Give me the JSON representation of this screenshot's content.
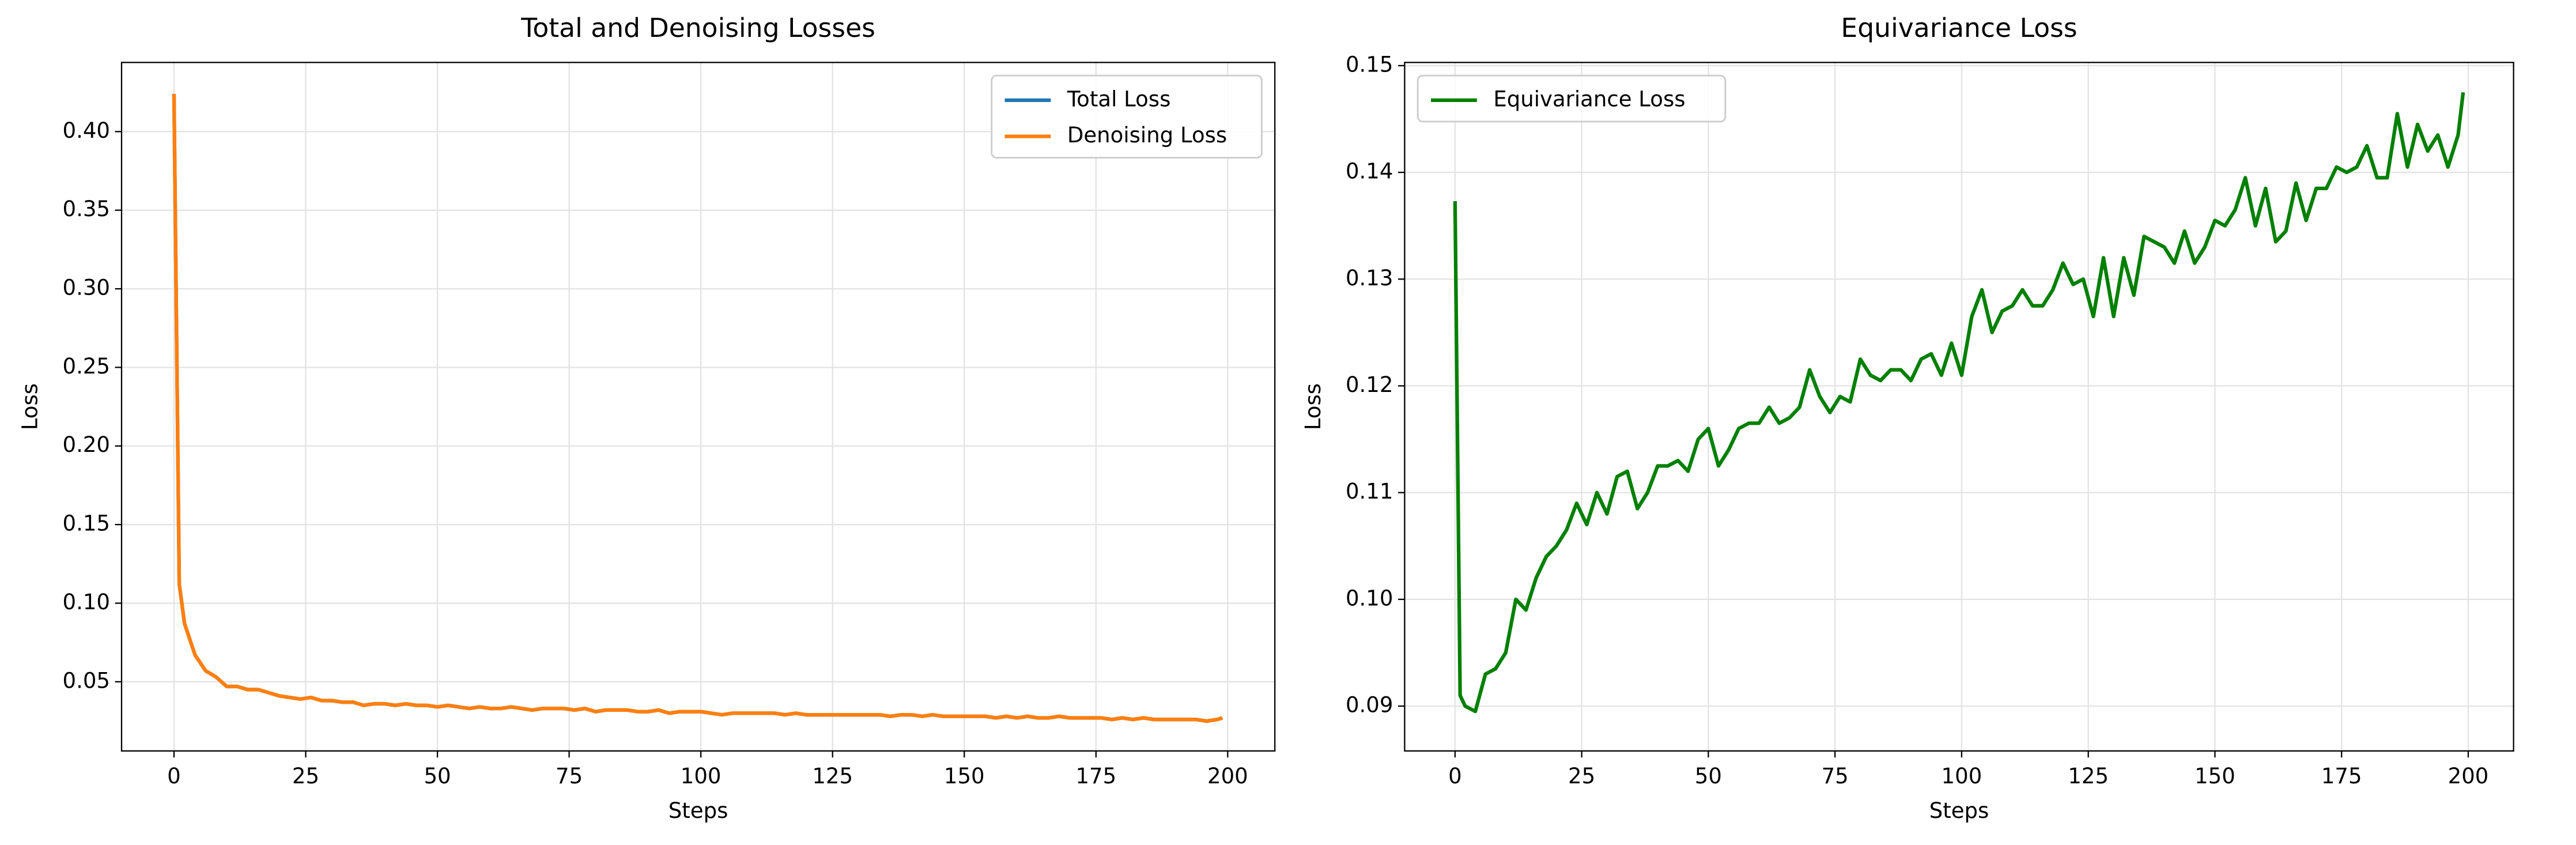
{
  "chart_data": [
    {
      "type": "line",
      "title": "Total and Denoising Losses",
      "xlabel": "Steps",
      "ylabel": "Loss",
      "x": [
        0,
        1,
        2,
        4,
        6,
        8,
        10,
        12,
        14,
        16,
        18,
        20,
        22,
        24,
        26,
        28,
        30,
        32,
        34,
        36,
        38,
        40,
        42,
        44,
        46,
        48,
        50,
        52,
        54,
        56,
        58,
        60,
        62,
        64,
        66,
        68,
        70,
        72,
        74,
        76,
        78,
        80,
        82,
        84,
        86,
        88,
        90,
        92,
        94,
        96,
        98,
        100,
        102,
        104,
        106,
        108,
        110,
        112,
        114,
        116,
        118,
        120,
        122,
        124,
        126,
        128,
        130,
        132,
        134,
        136,
        138,
        140,
        142,
        144,
        146,
        148,
        150,
        152,
        154,
        156,
        158,
        160,
        162,
        164,
        166,
        168,
        170,
        172,
        174,
        176,
        178,
        180,
        182,
        184,
        186,
        188,
        190,
        192,
        194,
        196,
        198,
        199
      ],
      "series": [
        {
          "name": "Total Loss",
          "color": "#1f77b4",
          "values": [
            0.424,
            0.112,
            0.087,
            0.067,
            0.057,
            0.053,
            0.047,
            0.047,
            0.045,
            0.045,
            0.043,
            0.041,
            0.04,
            0.039,
            0.04,
            0.038,
            0.038,
            0.037,
            0.037,
            0.035,
            0.036,
            0.036,
            0.035,
            0.036,
            0.035,
            0.035,
            0.034,
            0.035,
            0.034,
            0.033,
            0.034,
            0.033,
            0.033,
            0.034,
            0.033,
            0.032,
            0.033,
            0.033,
            0.033,
            0.032,
            0.033,
            0.031,
            0.032,
            0.032,
            0.032,
            0.031,
            0.031,
            0.032,
            0.03,
            0.031,
            0.031,
            0.031,
            0.03,
            0.029,
            0.03,
            0.03,
            0.03,
            0.03,
            0.03,
            0.029,
            0.03,
            0.029,
            0.029,
            0.029,
            0.029,
            0.029,
            0.029,
            0.029,
            0.029,
            0.028,
            0.029,
            0.029,
            0.028,
            0.029,
            0.028,
            0.028,
            0.028,
            0.028,
            0.028,
            0.027,
            0.028,
            0.027,
            0.028,
            0.027,
            0.027,
            0.028,
            0.027,
            0.027,
            0.027,
            0.027,
            0.026,
            0.027,
            0.026,
            0.027,
            0.026,
            0.026,
            0.026,
            0.026,
            0.026,
            0.025,
            0.026,
            0.027
          ]
        },
        {
          "name": "Denoising Loss",
          "color": "#ff7f0e",
          "values": [
            0.424,
            0.112,
            0.087,
            0.067,
            0.057,
            0.053,
            0.047,
            0.047,
            0.045,
            0.045,
            0.043,
            0.041,
            0.04,
            0.039,
            0.04,
            0.038,
            0.038,
            0.037,
            0.037,
            0.035,
            0.036,
            0.036,
            0.035,
            0.036,
            0.035,
            0.035,
            0.034,
            0.035,
            0.034,
            0.033,
            0.034,
            0.033,
            0.033,
            0.034,
            0.033,
            0.032,
            0.033,
            0.033,
            0.033,
            0.032,
            0.033,
            0.031,
            0.032,
            0.032,
            0.032,
            0.031,
            0.031,
            0.032,
            0.03,
            0.031,
            0.031,
            0.031,
            0.03,
            0.029,
            0.03,
            0.03,
            0.03,
            0.03,
            0.03,
            0.029,
            0.03,
            0.029,
            0.029,
            0.029,
            0.029,
            0.029,
            0.029,
            0.029,
            0.029,
            0.028,
            0.029,
            0.029,
            0.028,
            0.029,
            0.028,
            0.028,
            0.028,
            0.028,
            0.028,
            0.027,
            0.028,
            0.027,
            0.028,
            0.027,
            0.027,
            0.028,
            0.027,
            0.027,
            0.027,
            0.027,
            0.026,
            0.027,
            0.026,
            0.027,
            0.026,
            0.026,
            0.026,
            0.026,
            0.026,
            0.025,
            0.026,
            0.027
          ]
        }
      ],
      "xlim": [
        -9.95,
        208.95
      ],
      "xticks": [
        0,
        25,
        50,
        75,
        100,
        125,
        150,
        175,
        200
      ],
      "ylim": [
        0.006,
        0.444
      ],
      "yticks": [
        0.05,
        {
          "value": 0.1,
          "label": "0.10"
        },
        0.15,
        {
          "value": 0.2,
          "label": "0.20"
        },
        0.25,
        {
          "value": 0.3,
          "label": "0.30"
        },
        0.35,
        {
          "value": 0.4,
          "label": "0.40"
        }
      ],
      "grid": true,
      "legend": "upper right"
    },
    {
      "type": "line",
      "title": "Equivariance Loss",
      "xlabel": "Steps",
      "ylabel": "Loss",
      "x": [
        0,
        1,
        2,
        4,
        6,
        8,
        10,
        12,
        14,
        16,
        18,
        20,
        22,
        24,
        26,
        28,
        30,
        32,
        34,
        36,
        38,
        40,
        42,
        44,
        46,
        48,
        50,
        52,
        54,
        56,
        58,
        60,
        62,
        64,
        66,
        68,
        70,
        72,
        74,
        76,
        78,
        80,
        82,
        84,
        86,
        88,
        90,
        92,
        94,
        96,
        98,
        100,
        102,
        104,
        106,
        108,
        110,
        112,
        114,
        116,
        118,
        120,
        122,
        124,
        126,
        128,
        130,
        132,
        134,
        136,
        138,
        140,
        142,
        144,
        146,
        148,
        150,
        152,
        154,
        156,
        158,
        160,
        162,
        164,
        166,
        168,
        170,
        172,
        174,
        176,
        178,
        180,
        182,
        184,
        186,
        188,
        190,
        192,
        194,
        196,
        198,
        199
      ],
      "series": [
        {
          "name": "Equivariance Loss",
          "color": "#008000",
          "values": [
            0.1373,
            0.091,
            0.09,
            0.0895,
            0.093,
            0.0935,
            0.095,
            0.1,
            0.099,
            0.102,
            0.104,
            0.105,
            0.1065,
            0.109,
            0.107,
            0.11,
            0.108,
            0.1115,
            0.112,
            0.1085,
            0.11,
            0.1125,
            0.1125,
            0.113,
            0.112,
            0.115,
            0.116,
            0.1125,
            0.114,
            0.116,
            0.1165,
            0.1165,
            0.118,
            0.1165,
            0.117,
            0.118,
            0.1215,
            0.119,
            0.1175,
            0.119,
            0.1185,
            0.1225,
            0.121,
            0.1205,
            0.1215,
            0.1215,
            0.1205,
            0.1225,
            0.123,
            0.121,
            0.124,
            0.121,
            0.1265,
            0.129,
            0.125,
            0.127,
            0.1275,
            0.129,
            0.1275,
            0.1275,
            0.129,
            0.1315,
            0.1295,
            0.13,
            0.1265,
            0.132,
            0.1265,
            0.132,
            0.1285,
            0.134,
            0.1335,
            0.133,
            0.1315,
            0.1345,
            0.1315,
            0.133,
            0.1355,
            0.135,
            0.1365,
            0.1395,
            0.135,
            0.1385,
            0.1335,
            0.1345,
            0.139,
            0.1355,
            0.1385,
            0.1385,
            0.1405,
            0.14,
            0.1405,
            0.1425,
            0.1395,
            0.1395,
            0.1455,
            0.1405,
            0.1445,
            0.142,
            0.1435,
            0.1405,
            0.1435,
            0.1475
          ]
        }
      ],
      "xlim": [
        -9.95,
        208.95
      ],
      "xticks": [
        0,
        25,
        50,
        75,
        100,
        125,
        150,
        175,
        200
      ],
      "ylim": [
        0.0858,
        0.1503
      ],
      "yticks": [
        0.09,
        {
          "value": 0.1,
          "label": "0.10"
        },
        0.11,
        0.12,
        0.13,
        0.14,
        0.15
      ],
      "grid": true,
      "legend": "upper left"
    }
  ]
}
